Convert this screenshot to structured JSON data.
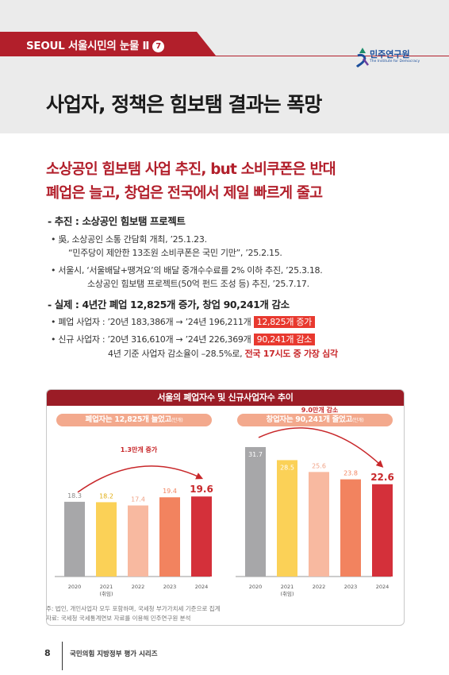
{
  "header": {
    "series_label": "SEOUL 서울시민의 눈물 Ⅱ",
    "series_number": "7",
    "logo_name": "민주연구원",
    "logo_subtitle": "The Institute for Democracy",
    "page_title": "사업자, 정책은 힘보탬 결과는 폭망",
    "accent_color": "#b21f2b"
  },
  "headline": {
    "line1": "소상공인 힘보탬 사업 추진, but 소비쿠폰은 반대",
    "line2": "폐업은 늘고, 창업은 전국에서 제일 빠르게 줄고"
  },
  "section1": {
    "title": "- 추진 : 소상공인 힘보탬 프로젝트",
    "b1_l1": "• 吳, 소상공인 소통 간담회 개최, ’25.1.23.",
    "b1_l2": "“민주당이 제안한 13조원 소비쿠폰은 국민 기만”, ’25.2.15.",
    "b2_l1": "• 서울시, ‘서울배달+땡겨요’의 배달 중개수수료를 2% 이하 추진, ’25.3.18.",
    "b2_l2": "소상공인 힘보탬 프로젝트(50억 펀드 조성 등) 추진, ’25.7.17."
  },
  "section2": {
    "title": "- 실제 : 4년간 폐업 12,825개 증가, 창업 90,241개 감소",
    "b1_text": "• 폐업 사업자 : ’20년 183,386개 → ’24년 196,211개",
    "b1_highlight": "12,825개 증가",
    "b2_text": "• 신규 사업자 : ’20년 316,610개 → ’24년 226,369개",
    "b2_highlight": "90,241개 감소",
    "b3_text": "4년 기준 사업자 감소율이 –28.5%로,",
    "b3_red": "전국 17시도 중 가장 심각"
  },
  "chart": {
    "title": "서울의 폐업자수 및 신규사업자수 추이",
    "left_pill": "폐업자는 12,825개 늘었고",
    "left_pill_unit": "(만개)",
    "right_pill": "창업자는 90,241개 줄었고",
    "right_pill_unit": "(만개)",
    "notes_line1": "주: 법인, 개인사업자 모두 포함하며, 국세청 부가가치세 기준으로 집계",
    "notes_line2": "자료: 국세청 국세통계연보 자료를 이용해 민주연구원 분석"
  },
  "chart_data": [
    {
      "type": "bar",
      "title": "폐업자는 12,825개 늘었고",
      "unit": "만개",
      "categories": [
        "2020",
        "2021",
        "2022",
        "2023",
        "2024"
      ],
      "category_notes": [
        "",
        "(취임)",
        "",
        "",
        ""
      ],
      "values": [
        18.3,
        18.2,
        17.4,
        19.4,
        19.6
      ],
      "colors": [
        "#a7a7a9",
        "#fbd157",
        "#f8b9a0",
        "#f2835f",
        "#d4303a"
      ],
      "label_colors": [
        "#8a8a8a",
        "#e0ad12",
        "#f0a387",
        "#f2835f",
        "#c8272a"
      ],
      "annotation": "1.3만개 증가",
      "ylim": [
        0,
        35
      ]
    },
    {
      "type": "bar",
      "title": "창업자는 90,241개 줄었고",
      "unit": "만개",
      "categories": [
        "2020",
        "2021",
        "2022",
        "2023",
        "2024"
      ],
      "category_notes": [
        "",
        "(취임)",
        "",
        "",
        ""
      ],
      "values": [
        31.7,
        28.5,
        25.6,
        23.8,
        22.6
      ],
      "colors": [
        "#a7a7a9",
        "#fbd157",
        "#f8b9a0",
        "#f2835f",
        "#d4303a"
      ],
      "label_colors": [
        "#ffffff",
        "#ffffff",
        "#f0a387",
        "#f2835f",
        "#c8272a"
      ],
      "annotation": "9.0만개 감소",
      "ylim": [
        0,
        35
      ]
    }
  ],
  "footer": {
    "page_number": "8",
    "series_text": "국민의힘 지방정부 평가 시리즈"
  }
}
